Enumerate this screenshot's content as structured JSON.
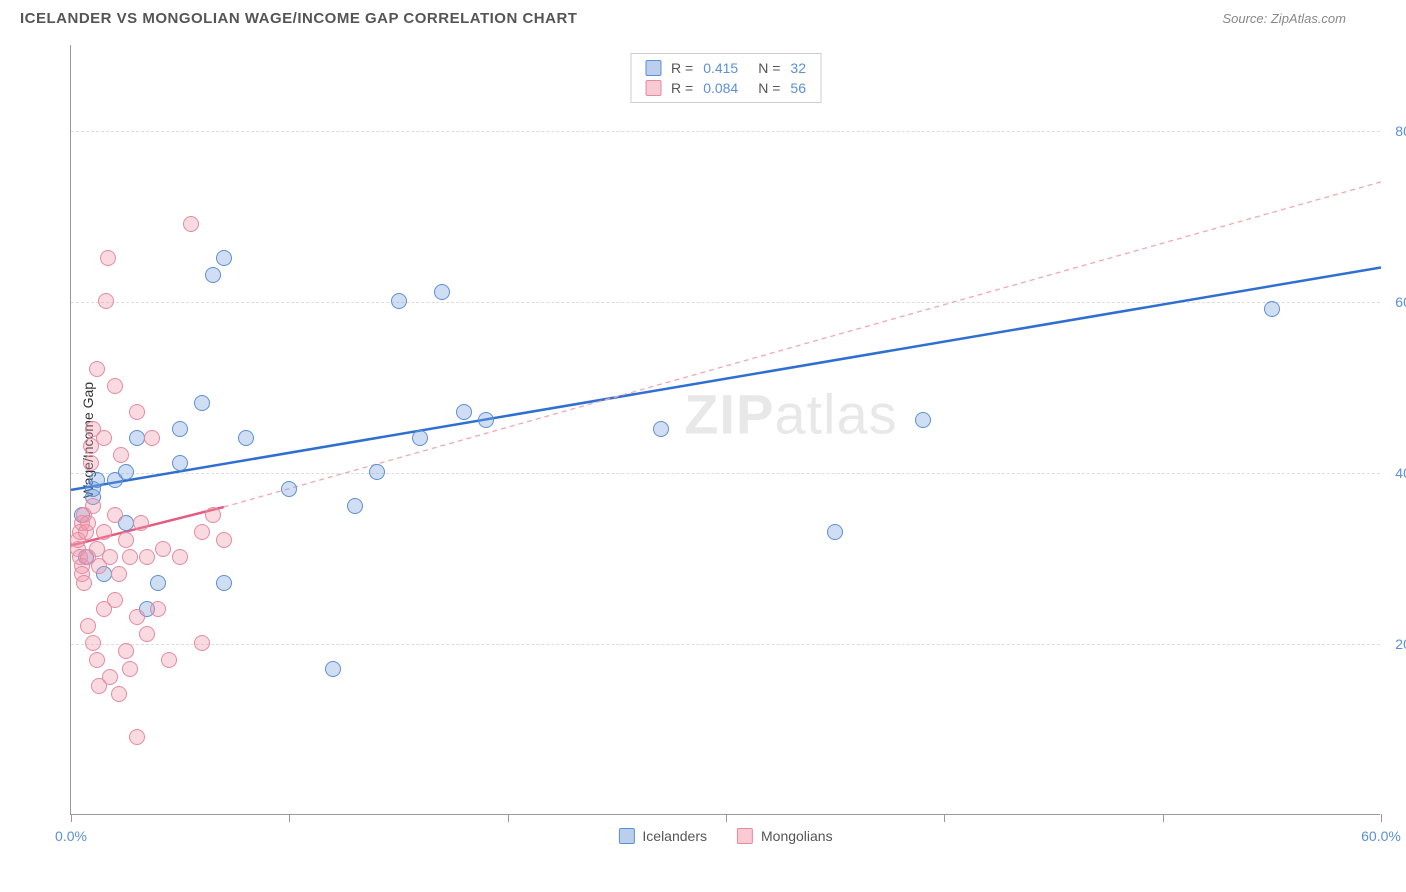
{
  "header": {
    "title": "ICELANDER VS MONGOLIAN WAGE/INCOME GAP CORRELATION CHART",
    "source_label": "Source: ",
    "source_value": "ZipAtlas.com"
  },
  "chart": {
    "type": "scatter",
    "y_axis_label": "Wage/Income Gap",
    "xlim": [
      0,
      60
    ],
    "ylim": [
      0,
      90
    ],
    "x_ticks": [
      0,
      10,
      20,
      30,
      40,
      50,
      60
    ],
    "x_tick_labels": [
      "0.0%",
      "",
      "",
      "",
      "",
      "",
      "60.0%"
    ],
    "y_gridlines": [
      20,
      40,
      60,
      80
    ],
    "y_tick_labels": [
      "20.0%",
      "40.0%",
      "60.0%",
      "80.0%"
    ],
    "background_color": "#ffffff",
    "grid_color": "#dddddd",
    "axis_color": "#999999",
    "tick_label_color": "#5b8fd6",
    "point_radius": 8,
    "series": [
      {
        "name": "Icelanders",
        "color_fill": "rgba(120,160,220,0.35)",
        "color_stroke": "#5b8fd6",
        "r_label": "R =",
        "r_value": "0.415",
        "n_label": "N =",
        "n_value": "32",
        "trend": {
          "x1": 0,
          "y1": 38,
          "x2": 60,
          "y2": 64,
          "stroke": "#2f6fd0",
          "width": 2.5,
          "dash": "none"
        },
        "extrapolate": null,
        "points": [
          [
            0.5,
            35
          ],
          [
            0.7,
            30
          ],
          [
            1,
            37
          ],
          [
            1,
            38
          ],
          [
            1.2,
            39
          ],
          [
            1.5,
            28
          ],
          [
            2,
            39
          ],
          [
            2.5,
            40
          ],
          [
            2.5,
            34
          ],
          [
            3,
            44
          ],
          [
            3.5,
            24
          ],
          [
            4,
            27
          ],
          [
            5,
            41
          ],
          [
            5,
            45
          ],
          [
            6,
            48
          ],
          [
            6.5,
            63
          ],
          [
            7,
            27
          ],
          [
            7,
            65
          ],
          [
            8,
            44
          ],
          [
            10,
            38
          ],
          [
            12,
            17
          ],
          [
            13,
            36
          ],
          [
            14,
            40
          ],
          [
            15,
            60
          ],
          [
            16,
            44
          ],
          [
            17,
            61
          ],
          [
            18,
            47
          ],
          [
            19,
            46
          ],
          [
            27,
            45
          ],
          [
            35,
            33
          ],
          [
            39,
            46
          ],
          [
            55,
            59
          ]
        ]
      },
      {
        "name": "Mongolians",
        "color_fill": "rgba(240,150,170,0.35)",
        "color_stroke": "#e68aa0",
        "r_label": "R =",
        "r_value": "0.084",
        "n_label": "N =",
        "n_value": "56",
        "trend": {
          "x1": 0,
          "y1": 31.5,
          "x2": 7,
          "y2": 36,
          "stroke": "#e55b82",
          "width": 2.5,
          "dash": "none"
        },
        "extrapolate": {
          "x1": 7,
          "y1": 36,
          "x2": 60,
          "y2": 74,
          "stroke": "#f0a8b8",
          "width": 1.3,
          "dash": "5,4"
        },
        "points": [
          [
            0.3,
            31
          ],
          [
            0.3,
            32
          ],
          [
            0.4,
            33
          ],
          [
            0.4,
            30
          ],
          [
            0.5,
            34
          ],
          [
            0.5,
            29
          ],
          [
            0.5,
            28
          ],
          [
            0.6,
            35
          ],
          [
            0.6,
            27
          ],
          [
            0.7,
            33
          ],
          [
            0.8,
            34
          ],
          [
            0.8,
            30
          ],
          [
            0.8,
            22
          ],
          [
            0.9,
            43
          ],
          [
            0.9,
            41
          ],
          [
            1,
            36
          ],
          [
            1,
            45
          ],
          [
            1,
            20
          ],
          [
            1.2,
            18
          ],
          [
            1.2,
            31
          ],
          [
            1.2,
            52
          ],
          [
            1.3,
            15
          ],
          [
            1.3,
            29
          ],
          [
            1.5,
            44
          ],
          [
            1.5,
            24
          ],
          [
            1.5,
            33
          ],
          [
            1.6,
            60
          ],
          [
            1.7,
            65
          ],
          [
            1.8,
            16
          ],
          [
            1.8,
            30
          ],
          [
            2,
            50
          ],
          [
            2,
            25
          ],
          [
            2,
            35
          ],
          [
            2.2,
            28
          ],
          [
            2.2,
            14
          ],
          [
            2.3,
            42
          ],
          [
            2.5,
            32
          ],
          [
            2.5,
            19
          ],
          [
            2.7,
            17
          ],
          [
            2.7,
            30
          ],
          [
            3,
            47
          ],
          [
            3,
            23
          ],
          [
            3,
            9
          ],
          [
            3.2,
            34
          ],
          [
            3.5,
            21
          ],
          [
            3.5,
            30
          ],
          [
            3.7,
            44
          ],
          [
            4,
            24
          ],
          [
            4.2,
            31
          ],
          [
            4.5,
            18
          ],
          [
            5,
            30
          ],
          [
            5.5,
            69
          ],
          [
            6,
            20
          ],
          [
            6,
            33
          ],
          [
            6.5,
            35
          ],
          [
            7,
            32
          ]
        ]
      }
    ],
    "legend_bottom": [
      {
        "swatch": "blue",
        "label": "Icelanders"
      },
      {
        "swatch": "pink",
        "label": "Mongolians"
      }
    ],
    "watermark": {
      "part1": "ZIP",
      "part2": "atlas"
    }
  }
}
